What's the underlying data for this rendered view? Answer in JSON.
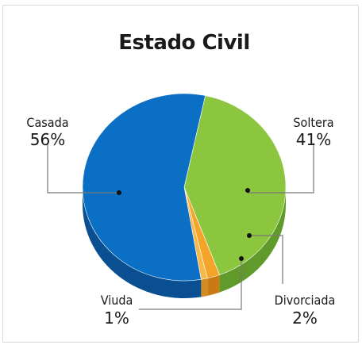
{
  "chart_data": {
    "type": "pie",
    "title": "Estado Civil",
    "slices": [
      {
        "label": "Soltera",
        "pct_label": "41%",
        "value": 41,
        "color": "#8cc63f",
        "side": "#5f9a2a"
      },
      {
        "label": "Divorciada",
        "pct_label": "2%",
        "value": 2,
        "color": "#f5a42a",
        "side": "#c97a14"
      },
      {
        "label": "Viuda",
        "pct_label": "1%",
        "value": 1,
        "color": "#f7b84a",
        "side": "#d08c20"
      },
      {
        "label": "Casada",
        "pct_label": "56%",
        "value": 56,
        "color": "#0b6fc5",
        "side": "#0a4f91"
      }
    ]
  }
}
